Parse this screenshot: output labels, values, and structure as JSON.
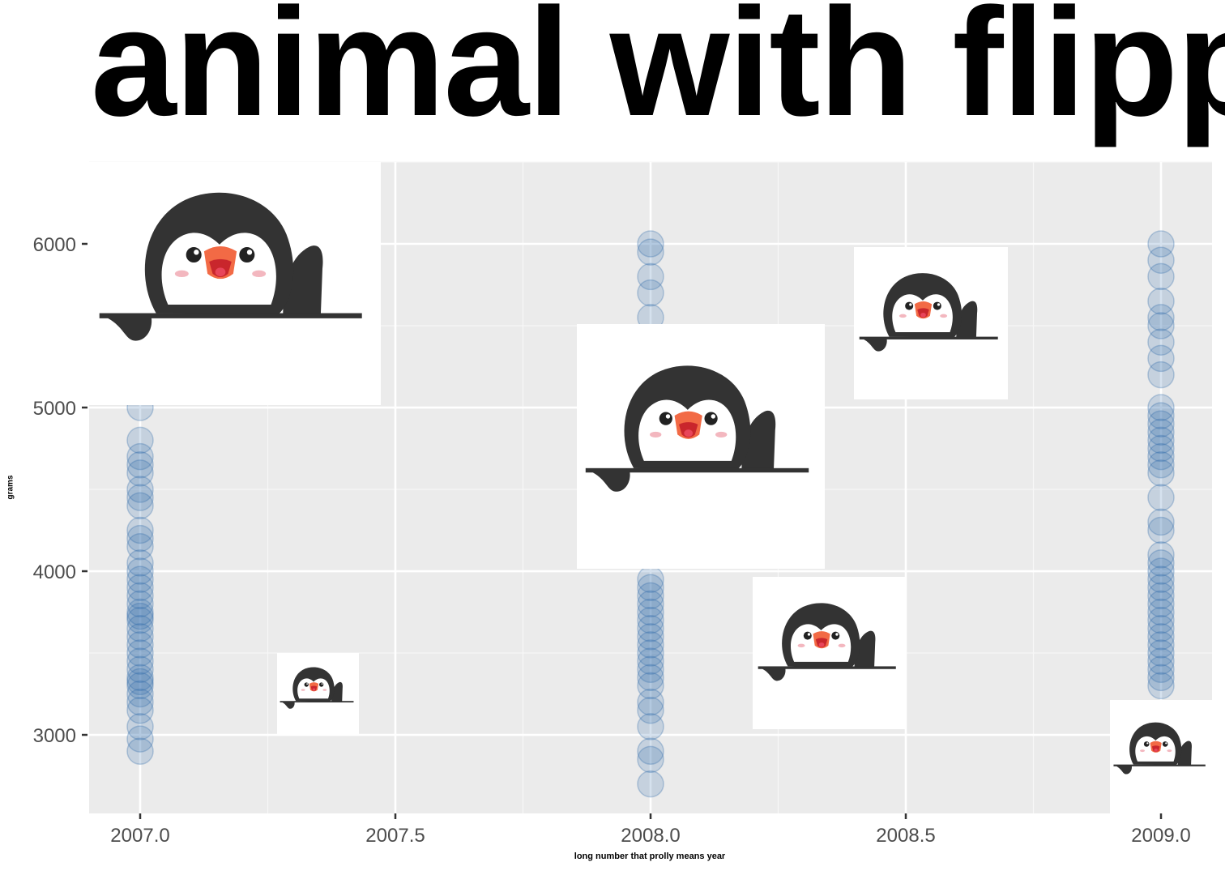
{
  "chart_data": {
    "type": "scatter",
    "title": "animal with flipp",
    "xlabel": "long number that prolly means year",
    "ylabel": "grams",
    "xlim": [
      2006.9,
      2009.1
    ],
    "ylim": [
      2520,
      6500
    ],
    "x_ticks": [
      "2007.0",
      "2007.5",
      "2008.0",
      "2008.5",
      "2009.0"
    ],
    "y_ticks": [
      "3000",
      "4000",
      "5000",
      "6000"
    ],
    "grid": true,
    "point_color": "#2f6aa8",
    "series": [
      {
        "x": 2007.0,
        "values": [
          2900,
          2975,
          3050,
          3150,
          3200,
          3250,
          3300,
          3325,
          3350,
          3400,
          3450,
          3500,
          3550,
          3600,
          3650,
          3700,
          3725,
          3750,
          3800,
          3850,
          3900,
          3950,
          4000,
          4050,
          4150,
          4200,
          4250,
          4400,
          4450,
          4500,
          4600,
          4650,
          4700,
          4800,
          5000
        ]
      },
      {
        "x": 2008.0,
        "values": [
          2700,
          2850,
          2900,
          3050,
          3150,
          3200,
          3300,
          3350,
          3400,
          3450,
          3500,
          3550,
          3600,
          3650,
          3700,
          3750,
          3800,
          3850,
          3900,
          3950,
          5550,
          5700,
          5800,
          5950,
          6000
        ]
      },
      {
        "x": 2009.0,
        "values": [
          3300,
          3350,
          3400,
          3450,
          3500,
          3550,
          3600,
          3650,
          3700,
          3750,
          3800,
          3850,
          3900,
          3950,
          4000,
          4050,
          4100,
          4250,
          4300,
          4450,
          4600,
          4650,
          4700,
          4750,
          4800,
          4850,
          4900,
          4950,
          5000,
          5200,
          5300,
          5400,
          5500,
          5550,
          5650,
          5800,
          5900,
          6000
        ]
      }
    ],
    "overlay_images": [
      "penguin-sticker",
      "penguin-sticker",
      "penguin-sticker",
      "penguin-sticker",
      "penguin-sticker",
      "penguin-sticker"
    ]
  }
}
